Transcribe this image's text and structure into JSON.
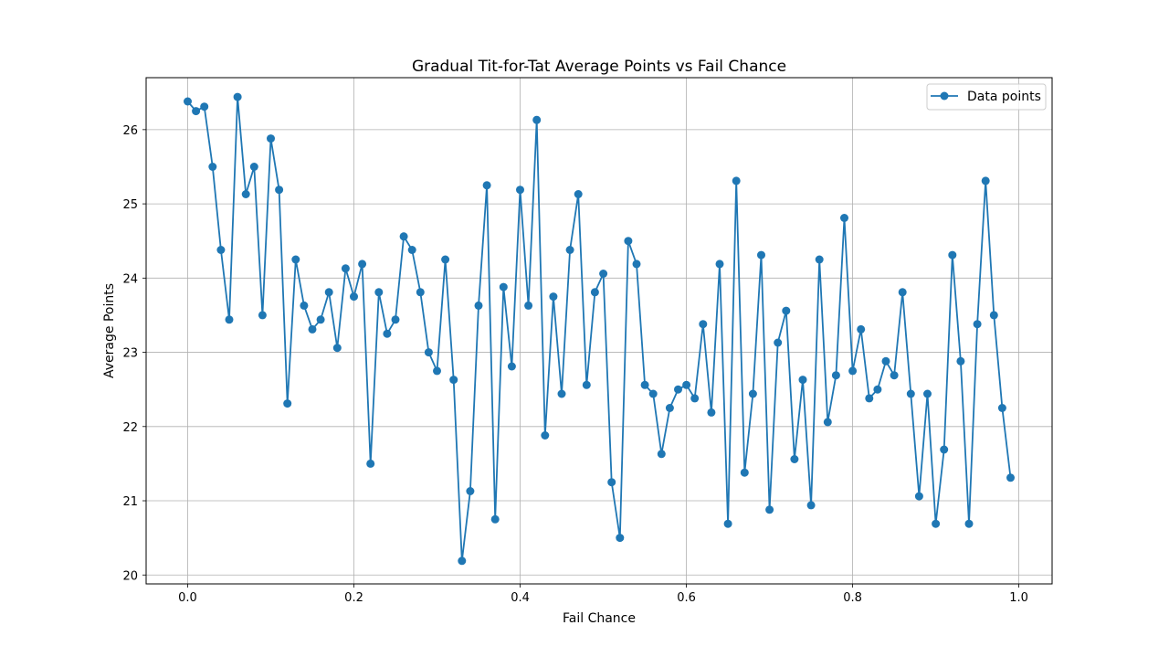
{
  "chart_data": {
    "type": "line",
    "title": "Gradual Tit-for-Tat Average Points vs Fail Chance",
    "xlabel": "Fail Chance",
    "ylabel": "Average Points",
    "xlim": [
      -0.05,
      1.04
    ],
    "ylim": [
      19.88,
      26.7
    ],
    "xticks": [
      0.0,
      0.2,
      0.4,
      0.6,
      0.8,
      1.0
    ],
    "xtick_labels": [
      "0.0",
      "0.2",
      "0.4",
      "0.6",
      "0.8",
      "1.0"
    ],
    "yticks": [
      20,
      21,
      22,
      23,
      24,
      25,
      26
    ],
    "ytick_labels": [
      "20",
      "21",
      "22",
      "23",
      "24",
      "25",
      "26"
    ],
    "grid": true,
    "legend_position": "top-right",
    "series": [
      {
        "name": "Data points",
        "color": "#1f77b4",
        "marker": "circle",
        "x": [
          0.0,
          0.01,
          0.02,
          0.03,
          0.04,
          0.05,
          0.06,
          0.07,
          0.08,
          0.09,
          0.1,
          0.11,
          0.12,
          0.13,
          0.14,
          0.15,
          0.16,
          0.17,
          0.18,
          0.19,
          0.2,
          0.21,
          0.22,
          0.23,
          0.24,
          0.25,
          0.26,
          0.27,
          0.28,
          0.29,
          0.3,
          0.31,
          0.32,
          0.33,
          0.34,
          0.35,
          0.36,
          0.37,
          0.38,
          0.39,
          0.4,
          0.41,
          0.42,
          0.43,
          0.44,
          0.45,
          0.46,
          0.47,
          0.48,
          0.49,
          0.5,
          0.51,
          0.52,
          0.53,
          0.54,
          0.55,
          0.56,
          0.57,
          0.58,
          0.59,
          0.6,
          0.61,
          0.62,
          0.63,
          0.64,
          0.65,
          0.66,
          0.67,
          0.68,
          0.69,
          0.7,
          0.71,
          0.72,
          0.73,
          0.74,
          0.75,
          0.76,
          0.77,
          0.78,
          0.79,
          0.8,
          0.81,
          0.82,
          0.83,
          0.84,
          0.85,
          0.86,
          0.87,
          0.88,
          0.89,
          0.9,
          0.91,
          0.92,
          0.93,
          0.94,
          0.95,
          0.96,
          0.97,
          0.98,
          0.99
        ],
        "y": [
          26.38,
          26.25,
          26.31,
          25.5,
          24.38,
          23.44,
          26.44,
          25.13,
          25.5,
          23.5,
          25.88,
          25.19,
          22.31,
          24.25,
          23.63,
          23.31,
          23.44,
          23.81,
          23.06,
          24.13,
          23.75,
          24.19,
          21.5,
          23.81,
          23.25,
          23.44,
          24.56,
          24.38,
          23.81,
          23.0,
          22.75,
          24.25,
          22.63,
          20.19,
          21.13,
          23.63,
          25.25,
          20.75,
          23.88,
          22.81,
          25.19,
          23.63,
          26.13,
          21.88,
          23.75,
          22.44,
          24.38,
          25.13,
          22.56,
          23.81,
          24.06,
          21.25,
          20.5,
          24.5,
          24.19,
          22.56,
          22.44,
          21.63,
          22.25,
          22.5,
          22.56,
          22.38,
          23.38,
          22.19,
          24.19,
          20.69,
          25.31,
          21.38,
          22.44,
          24.31,
          20.88,
          23.13,
          23.56,
          21.56,
          22.63,
          20.94,
          24.25,
          22.06,
          22.69,
          24.81,
          22.75,
          23.31,
          22.38,
          22.5,
          22.88,
          22.69,
          23.81,
          22.44,
          21.06,
          22.44,
          20.69,
          21.69,
          24.31,
          22.88,
          20.69,
          23.38,
          25.31,
          23.5,
          22.25,
          21.31
        ]
      }
    ]
  }
}
